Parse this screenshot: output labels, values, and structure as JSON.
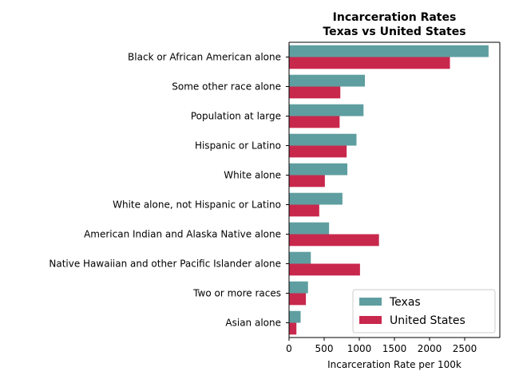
{
  "chart_data": {
    "type": "bar",
    "orientation": "horizontal",
    "title_lines": [
      "Incarceration Rates",
      "Texas vs United States"
    ],
    "xlabel": "Incarceration Rate per 100k",
    "ylabel": "",
    "xlim": [
      0,
      3000
    ],
    "xticks": [
      0,
      500,
      1000,
      1500,
      2000,
      2500
    ],
    "grid": false,
    "legend_position": "lower-right",
    "categories": [
      "Black or African American alone",
      "Some other race alone",
      "Population at large",
      "Hispanic or Latino",
      "White alone",
      "White alone, not Hispanic or Latino",
      "American Indian and Alaska Native alone",
      "Native Hawaiian and other Pacific Islander alone",
      "Two or more races",
      "Asian alone"
    ],
    "series": [
      {
        "name": "Texas",
        "color": "#5f9ea0",
        "values": [
          2840,
          1080,
          1060,
          960,
          830,
          760,
          570,
          310,
          270,
          165
        ]
      },
      {
        "name": "United States",
        "color": "#c9284d",
        "values": [
          2290,
          730,
          720,
          820,
          510,
          430,
          1280,
          1010,
          240,
          105
        ]
      }
    ]
  }
}
